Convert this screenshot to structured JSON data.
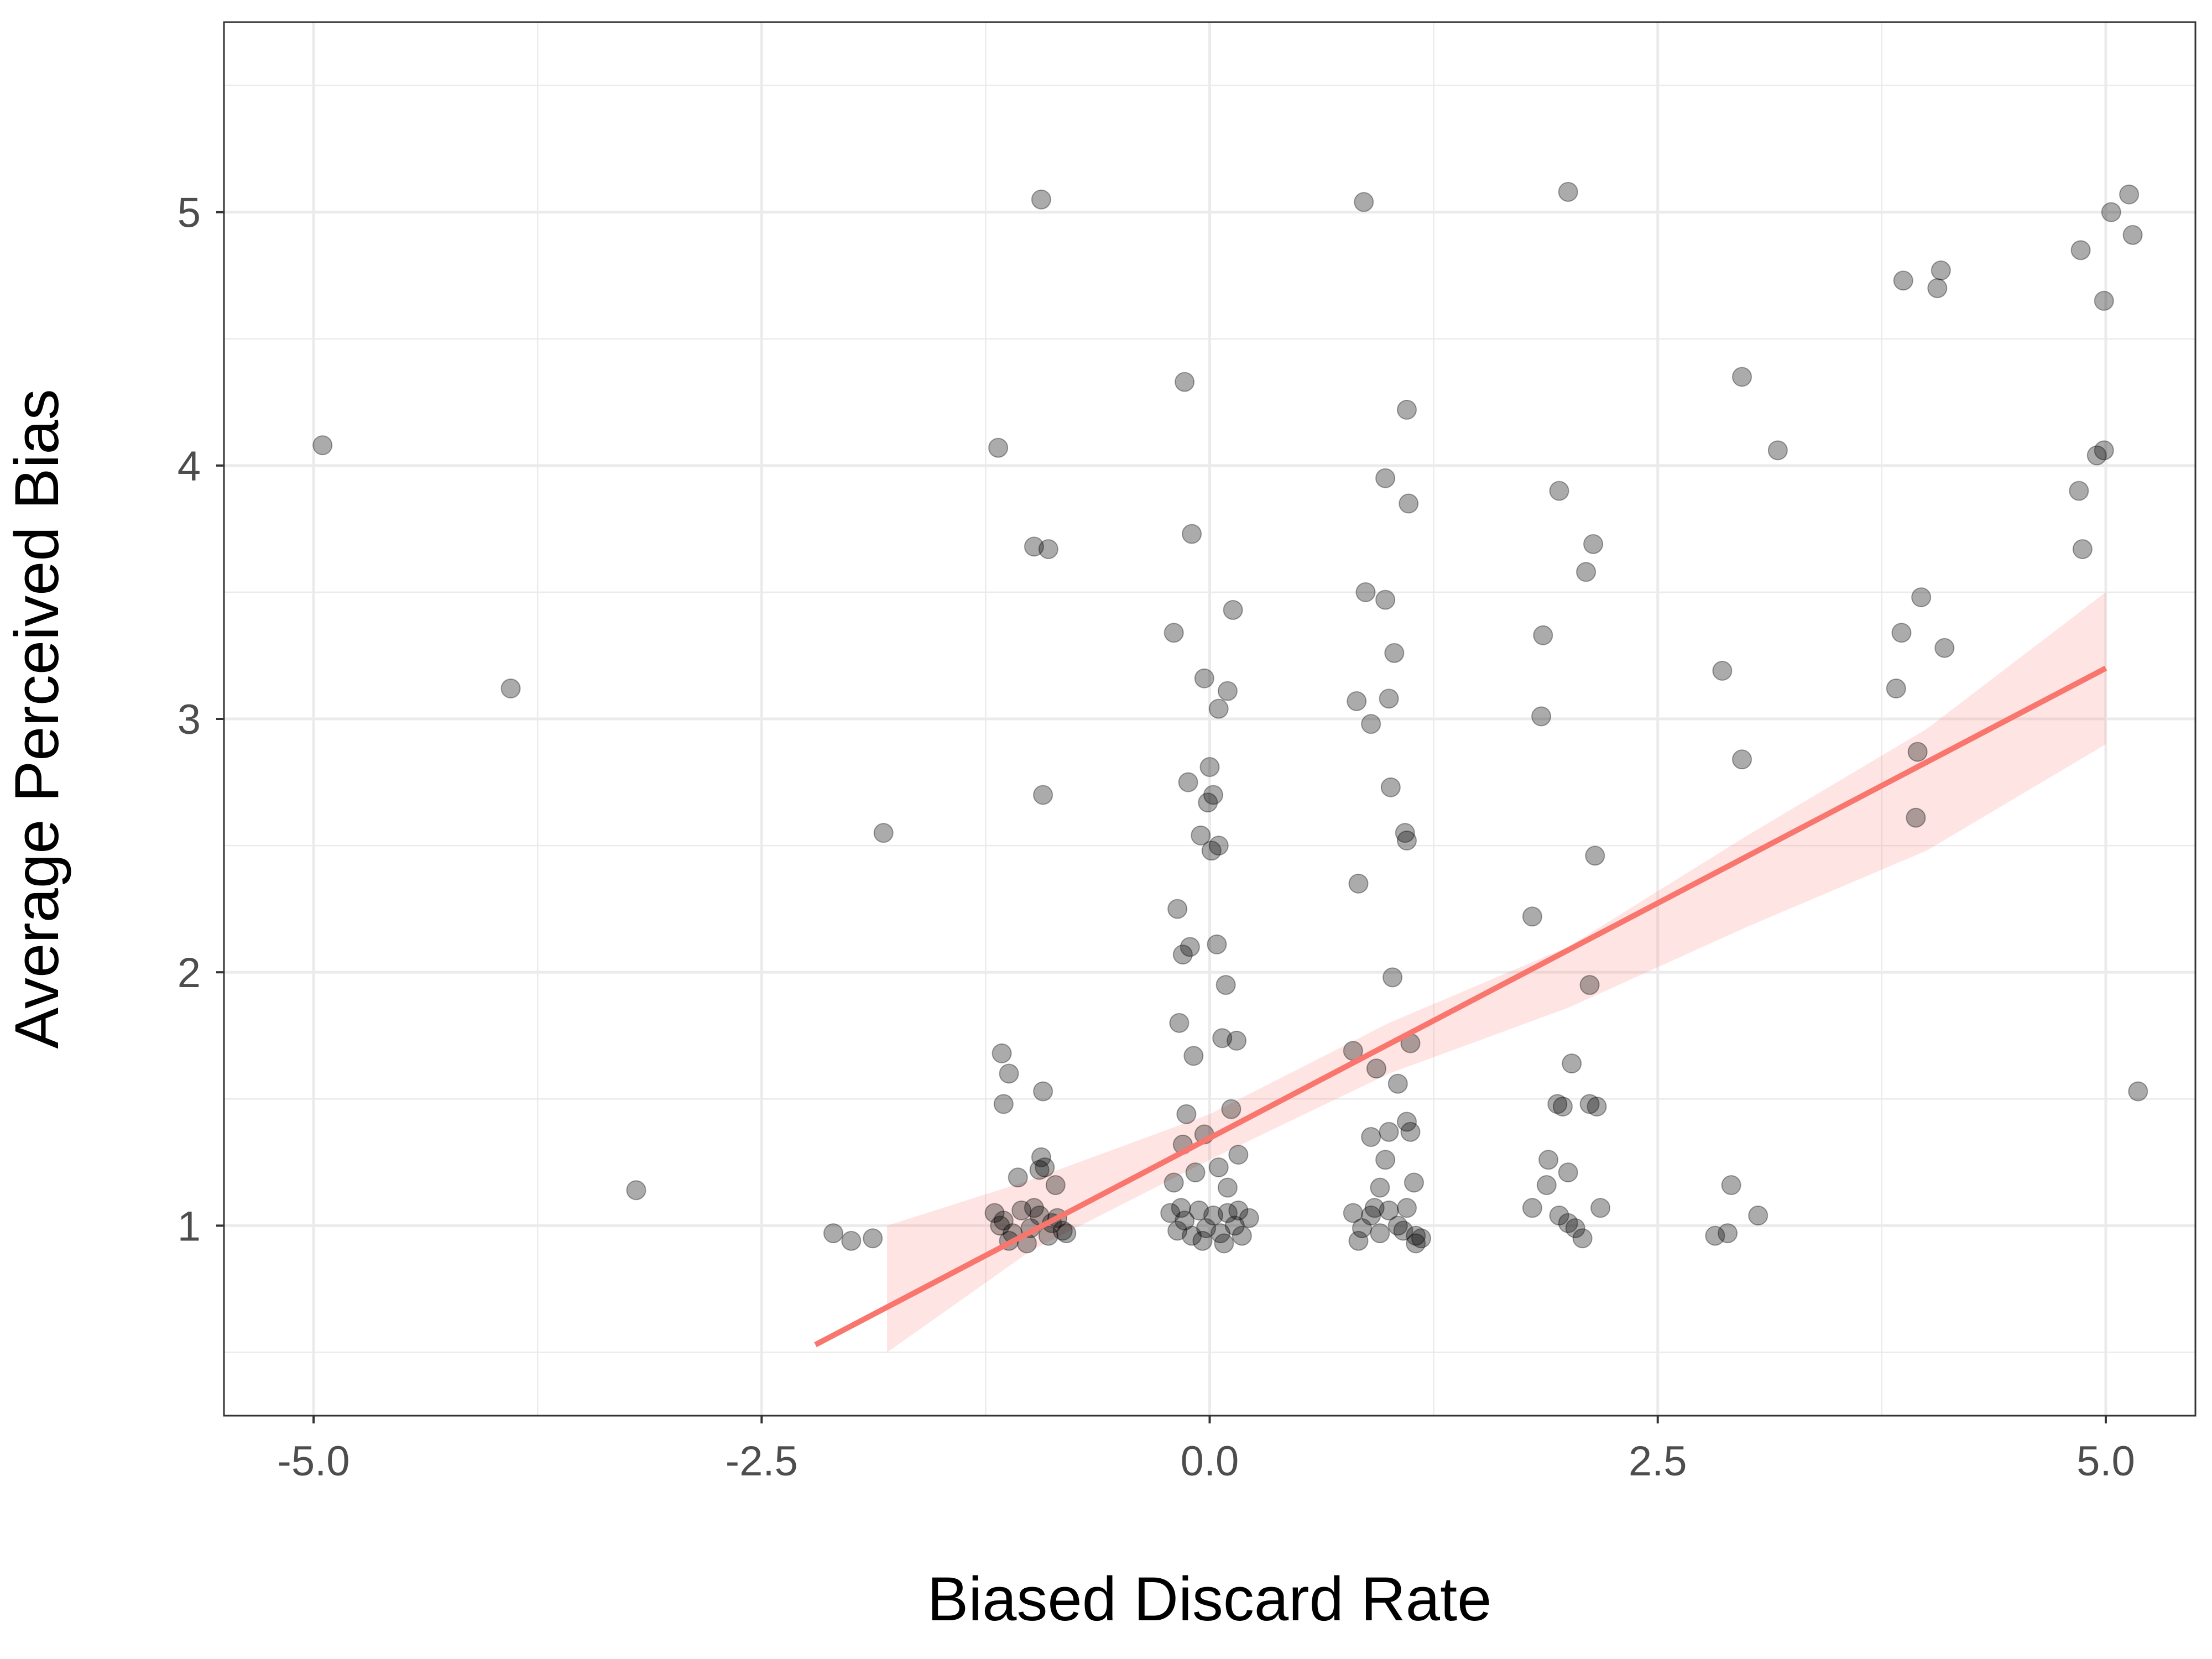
{
  "chart_data": {
    "type": "scatter",
    "title": "",
    "xlabel": "Biased Discard Rate",
    "ylabel": "Average Perceived Bias",
    "xlim": [
      -5.5,
      5.5
    ],
    "ylim": [
      0.25,
      5.75
    ],
    "x_ticks": [
      {
        "value": -5.0,
        "label": "-5.0"
      },
      {
        "value": -2.5,
        "label": "-2.5"
      },
      {
        "value": 0.0,
        "label": "0.0"
      },
      {
        "value": 2.5,
        "label": "2.5"
      },
      {
        "value": 5.0,
        "label": "5.0"
      }
    ],
    "y_ticks": [
      {
        "value": 1,
        "label": "1"
      },
      {
        "value": 2,
        "label": "2"
      },
      {
        "value": 3,
        "label": "3"
      },
      {
        "value": 4,
        "label": "4"
      },
      {
        "value": 5,
        "label": "5"
      }
    ],
    "grid": true,
    "colors": {
      "points": "#000000",
      "fit_line": "#f8766d",
      "confidence_band": "#f8766d",
      "grid": "#ebebeb",
      "panel_border": "#333333"
    },
    "points": [
      {
        "x": -4.95,
        "y": 4.08
      },
      {
        "x": -3.9,
        "y": 3.12
      },
      {
        "x": -3.2,
        "y": 1.14
      },
      {
        "x": -2.1,
        "y": 0.97
      },
      {
        "x": -2.0,
        "y": 0.94
      },
      {
        "x": -1.88,
        "y": 0.95
      },
      {
        "x": -1.82,
        "y": 2.55
      },
      {
        "x": -1.18,
        "y": 4.07
      },
      {
        "x": -0.98,
        "y": 3.68
      },
      {
        "x": -0.9,
        "y": 3.67
      },
      {
        "x": -0.93,
        "y": 2.7
      },
      {
        "x": -0.94,
        "y": 5.05
      },
      {
        "x": -1.16,
        "y": 1.68
      },
      {
        "x": -1.15,
        "y": 1.48
      },
      {
        "x": -1.12,
        "y": 1.6
      },
      {
        "x": -0.93,
        "y": 1.53
      },
      {
        "x": -0.94,
        "y": 1.27
      },
      {
        "x": -0.92,
        "y": 1.23
      },
      {
        "x": -1.07,
        "y": 1.19
      },
      {
        "x": -0.86,
        "y": 1.16
      },
      {
        "x": -0.95,
        "y": 1.22
      },
      {
        "x": -1.2,
        "y": 1.05
      },
      {
        "x": -1.15,
        "y": 1.02
      },
      {
        "x": -1.1,
        "y": 0.97
      },
      {
        "x": -1.05,
        "y": 1.06
      },
      {
        "x": -1.0,
        "y": 0.99
      },
      {
        "x": -0.95,
        "y": 1.04
      },
      {
        "x": -0.9,
        "y": 0.96
      },
      {
        "x": -0.85,
        "y": 1.03
      },
      {
        "x": -0.82,
        "y": 0.98
      },
      {
        "x": -1.12,
        "y": 0.94
      },
      {
        "x": -1.02,
        "y": 0.93
      },
      {
        "x": -0.98,
        "y": 1.07
      },
      {
        "x": -0.88,
        "y": 1.01
      },
      {
        "x": -0.8,
        "y": 0.97
      },
      {
        "x": -1.17,
        "y": 1.0
      },
      {
        "x": -0.14,
        "y": 4.33
      },
      {
        "x": -0.1,
        "y": 3.73
      },
      {
        "x": 0.13,
        "y": 3.43
      },
      {
        "x": -0.2,
        "y": 3.34
      },
      {
        "x": -0.03,
        "y": 3.16
      },
      {
        "x": 0.1,
        "y": 3.11
      },
      {
        "x": 0.05,
        "y": 3.04
      },
      {
        "x": 0.0,
        "y": 2.81
      },
      {
        "x": -0.12,
        "y": 2.75
      },
      {
        "x": 0.02,
        "y": 2.7
      },
      {
        "x": -0.01,
        "y": 2.67
      },
      {
        "x": -0.05,
        "y": 2.54
      },
      {
        "x": 0.05,
        "y": 2.5
      },
      {
        "x": 0.01,
        "y": 2.48
      },
      {
        "x": -0.18,
        "y": 2.25
      },
      {
        "x": 0.04,
        "y": 2.11
      },
      {
        "x": -0.11,
        "y": 2.1
      },
      {
        "x": -0.15,
        "y": 2.07
      },
      {
        "x": 0.09,
        "y": 1.95
      },
      {
        "x": -0.17,
        "y": 1.8
      },
      {
        "x": 0.07,
        "y": 1.74
      },
      {
        "x": 0.15,
        "y": 1.73
      },
      {
        "x": -0.09,
        "y": 1.67
      },
      {
        "x": 0.12,
        "y": 1.46
      },
      {
        "x": -0.13,
        "y": 1.44
      },
      {
        "x": -0.03,
        "y": 1.36
      },
      {
        "x": -0.15,
        "y": 1.32
      },
      {
        "x": 0.16,
        "y": 1.28
      },
      {
        "x": 0.05,
        "y": 1.23
      },
      {
        "x": -0.08,
        "y": 1.21
      },
      {
        "x": -0.2,
        "y": 1.17
      },
      {
        "x": 0.1,
        "y": 1.15
      },
      {
        "x": -0.22,
        "y": 1.05
      },
      {
        "x": -0.18,
        "y": 0.98
      },
      {
        "x": -0.14,
        "y": 1.02
      },
      {
        "x": -0.1,
        "y": 0.96
      },
      {
        "x": -0.06,
        "y": 1.06
      },
      {
        "x": -0.02,
        "y": 0.99
      },
      {
        "x": 0.02,
        "y": 1.04
      },
      {
        "x": 0.06,
        "y": 0.97
      },
      {
        "x": 0.1,
        "y": 1.05
      },
      {
        "x": 0.14,
        "y": 1.0
      },
      {
        "x": 0.18,
        "y": 0.96
      },
      {
        "x": 0.22,
        "y": 1.03
      },
      {
        "x": -0.16,
        "y": 1.07
      },
      {
        "x": -0.04,
        "y": 0.94
      },
      {
        "x": 0.08,
        "y": 0.93
      },
      {
        "x": 0.16,
        "y": 1.06
      },
      {
        "x": 0.86,
        "y": 5.04
      },
      {
        "x": 1.1,
        "y": 4.22
      },
      {
        "x": 0.98,
        "y": 3.95
      },
      {
        "x": 1.11,
        "y": 3.85
      },
      {
        "x": 0.87,
        "y": 3.5
      },
      {
        "x": 0.98,
        "y": 3.47
      },
      {
        "x": 1.03,
        "y": 3.26
      },
      {
        "x": 1.0,
        "y": 3.08
      },
      {
        "x": 0.82,
        "y": 3.07
      },
      {
        "x": 0.9,
        "y": 2.98
      },
      {
        "x": 1.01,
        "y": 2.73
      },
      {
        "x": 1.09,
        "y": 2.55
      },
      {
        "x": 1.1,
        "y": 2.52
      },
      {
        "x": 0.83,
        "y": 2.35
      },
      {
        "x": 1.02,
        "y": 1.98
      },
      {
        "x": 1.12,
        "y": 1.72
      },
      {
        "x": 0.8,
        "y": 1.69
      },
      {
        "x": 0.93,
        "y": 1.62
      },
      {
        "x": 1.05,
        "y": 1.56
      },
      {
        "x": 1.1,
        "y": 1.41
      },
      {
        "x": 1.12,
        "y": 1.37
      },
      {
        "x": 1.0,
        "y": 1.37
      },
      {
        "x": 0.9,
        "y": 1.35
      },
      {
        "x": 0.98,
        "y": 1.26
      },
      {
        "x": 1.14,
        "y": 1.17
      },
      {
        "x": 0.95,
        "y": 1.15
      },
      {
        "x": 0.8,
        "y": 1.05
      },
      {
        "x": 0.85,
        "y": 0.99
      },
      {
        "x": 0.9,
        "y": 1.04
      },
      {
        "x": 0.95,
        "y": 0.97
      },
      {
        "x": 1.0,
        "y": 1.06
      },
      {
        "x": 1.05,
        "y": 1.0
      },
      {
        "x": 1.1,
        "y": 1.07
      },
      {
        "x": 1.15,
        "y": 0.96
      },
      {
        "x": 1.18,
        "y": 0.95
      },
      {
        "x": 1.15,
        "y": 0.93
      },
      {
        "x": 0.83,
        "y": 0.94
      },
      {
        "x": 1.08,
        "y": 0.98
      },
      {
        "x": 0.92,
        "y": 1.07
      },
      {
        "x": 2.0,
        "y": 5.08
      },
      {
        "x": 1.95,
        "y": 3.9
      },
      {
        "x": 2.14,
        "y": 3.69
      },
      {
        "x": 2.1,
        "y": 3.58
      },
      {
        "x": 1.86,
        "y": 3.33
      },
      {
        "x": 1.85,
        "y": 3.01
      },
      {
        "x": 2.15,
        "y": 2.46
      },
      {
        "x": 1.8,
        "y": 2.22
      },
      {
        "x": 2.12,
        "y": 1.95
      },
      {
        "x": 2.02,
        "y": 1.64
      },
      {
        "x": 1.94,
        "y": 1.48
      },
      {
        "x": 1.97,
        "y": 1.47
      },
      {
        "x": 2.12,
        "y": 1.48
      },
      {
        "x": 2.16,
        "y": 1.47
      },
      {
        "x": 1.89,
        "y": 1.26
      },
      {
        "x": 2.0,
        "y": 1.21
      },
      {
        "x": 1.88,
        "y": 1.16
      },
      {
        "x": 1.8,
        "y": 1.07
      },
      {
        "x": 1.95,
        "y": 1.04
      },
      {
        "x": 2.0,
        "y": 1.01
      },
      {
        "x": 2.04,
        "y": 0.99
      },
      {
        "x": 2.18,
        "y": 1.07
      },
      {
        "x": 2.08,
        "y": 0.95
      },
      {
        "x": 2.97,
        "y": 4.35
      },
      {
        "x": 3.17,
        "y": 4.06
      },
      {
        "x": 2.86,
        "y": 3.19
      },
      {
        "x": 2.97,
        "y": 2.84
      },
      {
        "x": 2.91,
        "y": 1.16
      },
      {
        "x": 3.06,
        "y": 1.04
      },
      {
        "x": 2.89,
        "y": 0.97
      },
      {
        "x": 2.82,
        "y": 0.96
      },
      {
        "x": 3.87,
        "y": 4.73
      },
      {
        "x": 4.08,
        "y": 4.77
      },
      {
        "x": 4.06,
        "y": 4.7
      },
      {
        "x": 3.97,
        "y": 3.48
      },
      {
        "x": 3.86,
        "y": 3.34
      },
      {
        "x": 4.1,
        "y": 3.28
      },
      {
        "x": 3.83,
        "y": 3.12
      },
      {
        "x": 3.95,
        "y": 2.87
      },
      {
        "x": 3.94,
        "y": 2.61
      },
      {
        "x": 5.13,
        "y": 5.07
      },
      {
        "x": 5.03,
        "y": 5.0
      },
      {
        "x": 5.15,
        "y": 4.91
      },
      {
        "x": 4.86,
        "y": 4.85
      },
      {
        "x": 4.99,
        "y": 4.65
      },
      {
        "x": 4.99,
        "y": 4.06
      },
      {
        "x": 4.95,
        "y": 4.04
      },
      {
        "x": 4.85,
        "y": 3.9
      },
      {
        "x": 4.87,
        "y": 3.67
      },
      {
        "x": 5.18,
        "y": 1.53
      }
    ],
    "fit_line": {
      "x": [
        -2.2,
        5.0
      ],
      "y": [
        0.53,
        3.2
      ]
    },
    "confidence_band": {
      "x": [
        -1.8,
        -1.0,
        0.0,
        1.0,
        2.0,
        3.0,
        4.0,
        5.0
      ],
      "lower": [
        0.5,
        0.9,
        1.26,
        1.6,
        1.86,
        2.18,
        2.48,
        2.9
      ],
      "upper": [
        1.0,
        1.18,
        1.44,
        1.8,
        2.1,
        2.54,
        2.96,
        3.5
      ]
    }
  }
}
